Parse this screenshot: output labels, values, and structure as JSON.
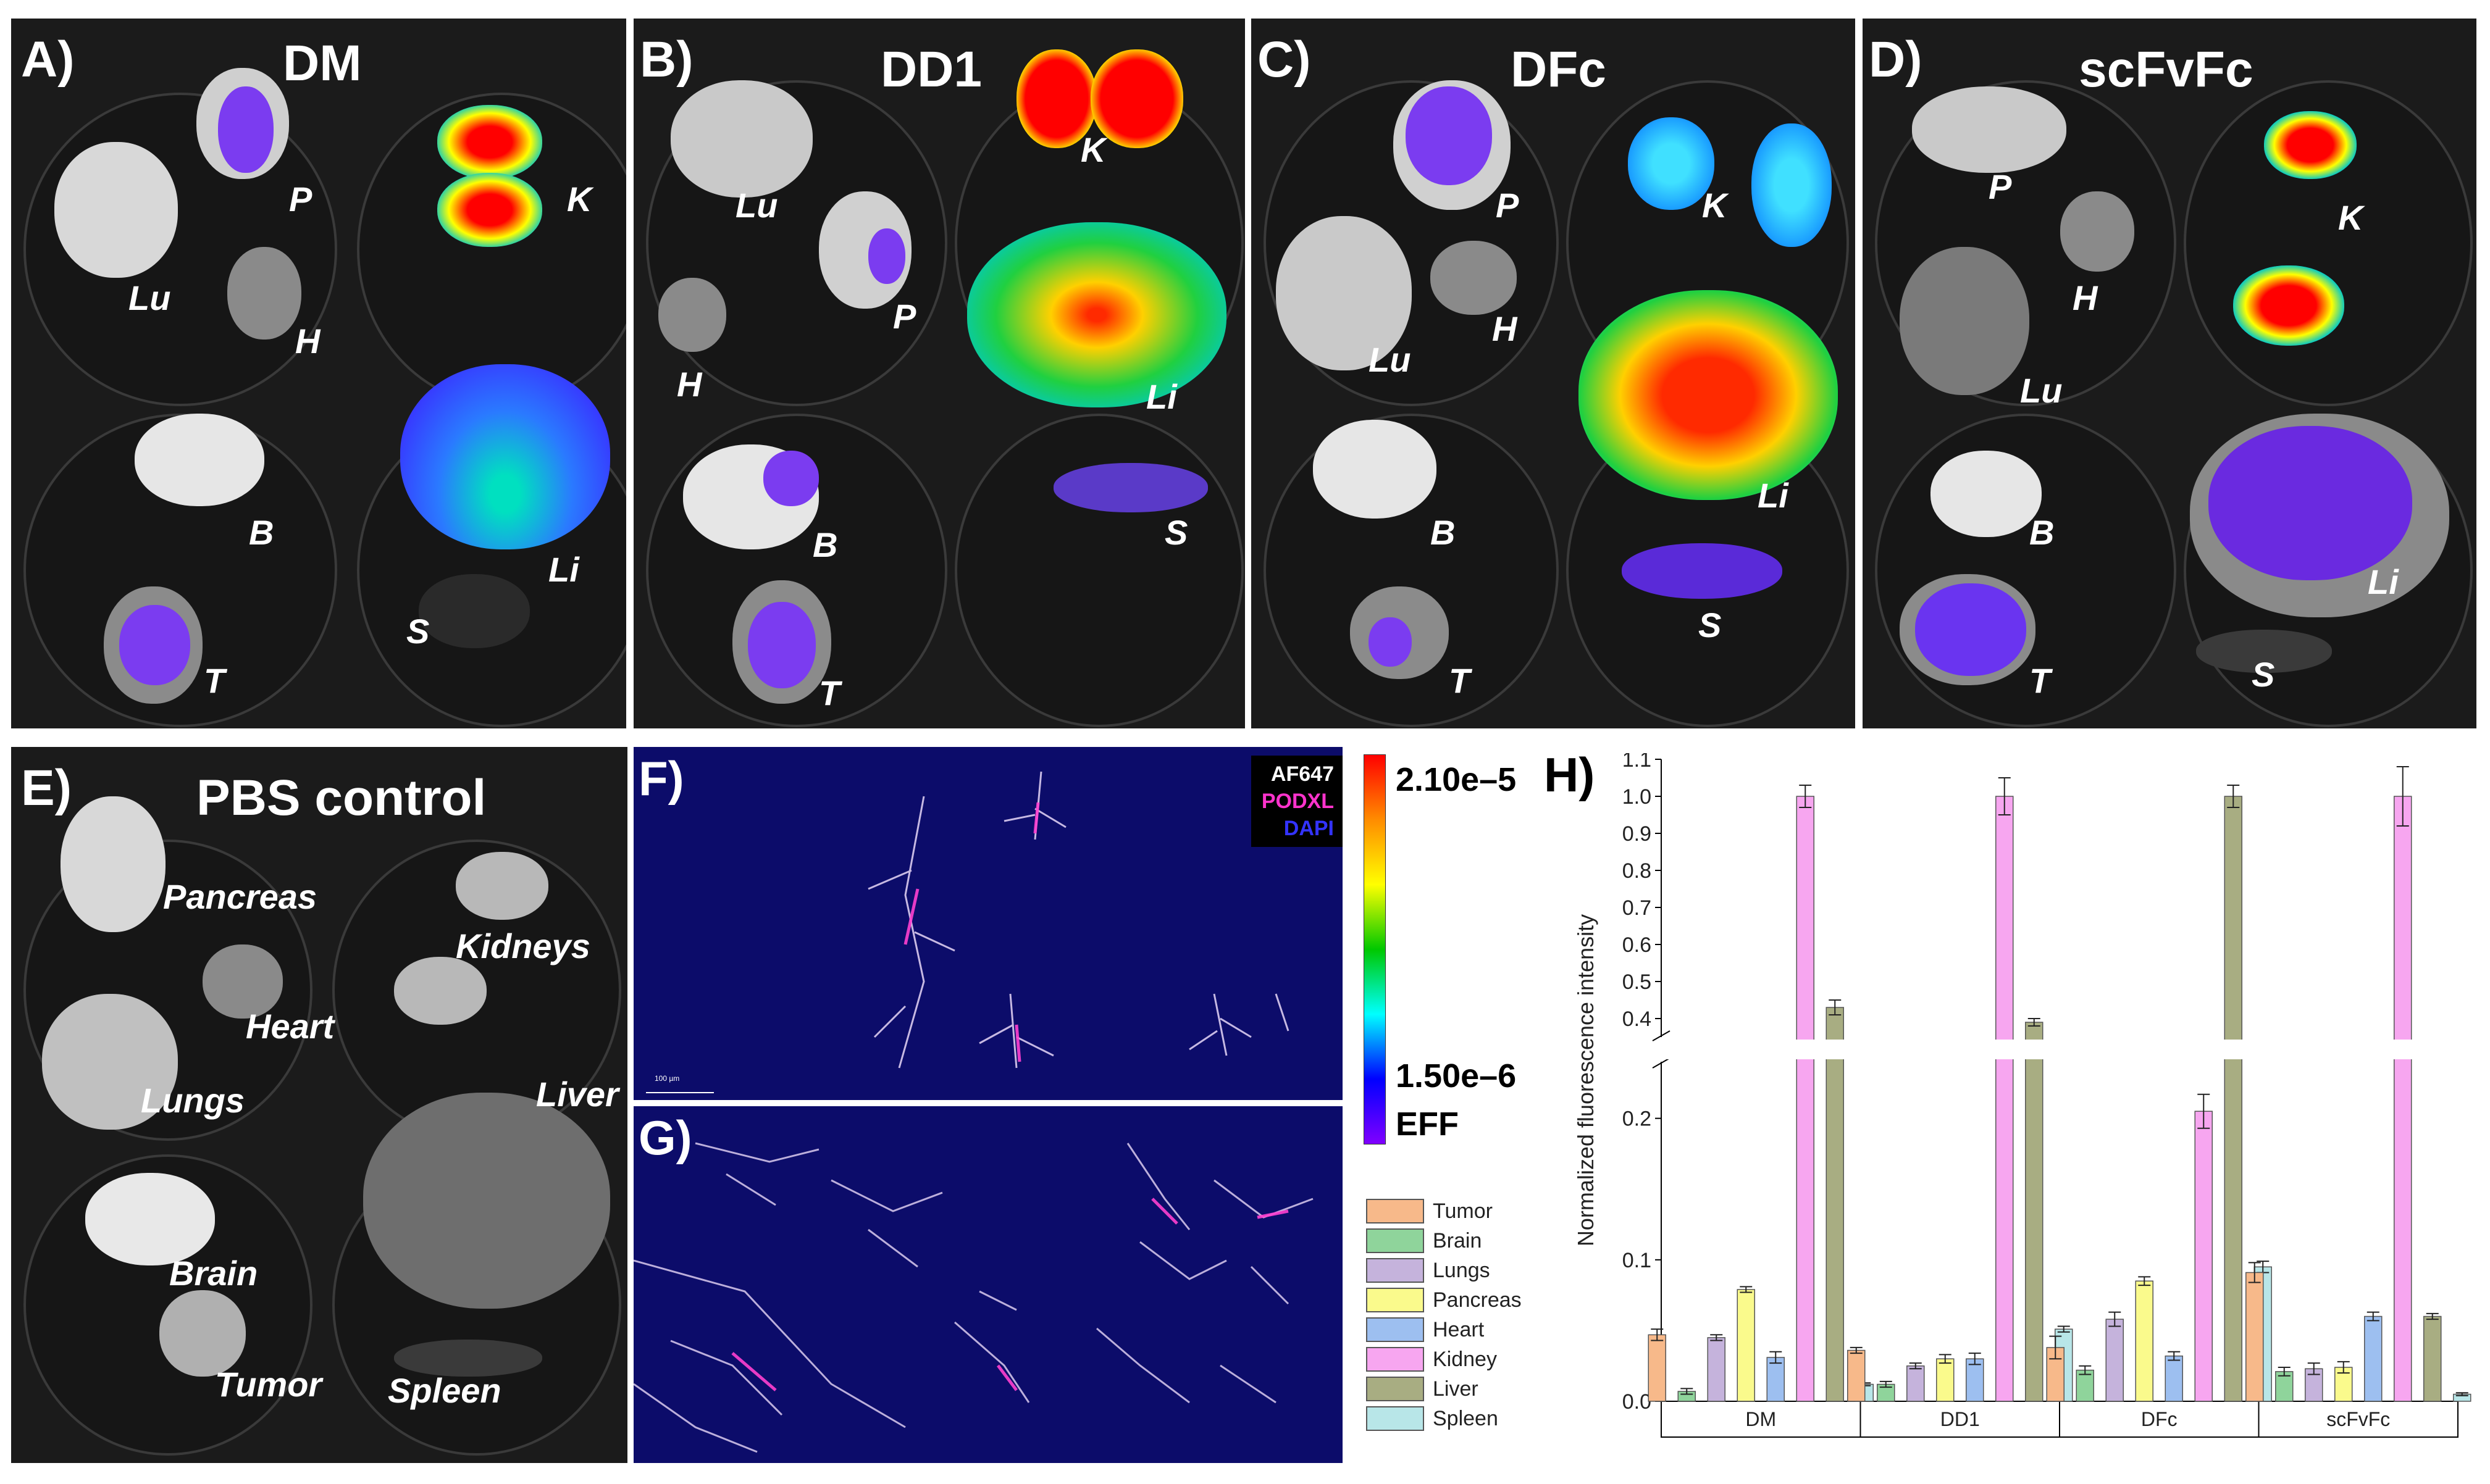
{
  "panels": {
    "A": {
      "label": "A)",
      "title": "DM",
      "organs": [
        "P",
        "K",
        "Lu",
        "H",
        "B",
        "Li",
        "T",
        "S"
      ]
    },
    "B": {
      "label": "B)",
      "title": "DD1",
      "organs": [
        "Lu",
        "K",
        "P",
        "H",
        "Li",
        "B",
        "S",
        "T"
      ]
    },
    "C": {
      "label": "C)",
      "title": "DFc",
      "organs": [
        "P",
        "K",
        "Lu",
        "H",
        "B",
        "Li",
        "S",
        "T"
      ]
    },
    "D": {
      "label": "D)",
      "title": "scFvFc",
      "organs": [
        "P",
        "K",
        "H",
        "Lu",
        "B",
        "Li",
        "T",
        "S"
      ]
    },
    "E": {
      "label": "E)",
      "title": "PBS control",
      "organs": [
        "Pancreas",
        "Kidneys",
        "Heart",
        "Lungs",
        "Liver",
        "Brain",
        "Tumor",
        "Spleen"
      ]
    },
    "F": {
      "label": "F)",
      "stain_legend": [
        "AF647",
        "PODXL",
        "DAPI"
      ],
      "stain_colors": [
        "#ffffff",
        "#ff33cc",
        "#3333ff"
      ],
      "scale_text": "100 µm"
    },
    "G": {
      "label": "G)"
    }
  },
  "colorbar": {
    "max": "2.10e–5",
    "min": "1.50e–6",
    "unit": "EFF",
    "colors": [
      "#ff0000",
      "#ffff00",
      "#00c800",
      "#00ffff",
      "#0000ff",
      "#8000ff"
    ]
  },
  "chart_data": {
    "type": "bar",
    "panel_label": "H)",
    "ylabel": "Normalized fluorescence intensity",
    "axis_break": {
      "lower_range": [
        0,
        0.24
      ],
      "upper_range": [
        0.35,
        1.1
      ]
    },
    "yticks_lower": [
      "0.0",
      "0.1",
      "0.2"
    ],
    "yticks_upper": [
      "0.4",
      "0.5",
      "0.6",
      "0.7",
      "0.8",
      "0.9",
      "1.0",
      "1.1"
    ],
    "categories": [
      "DM",
      "DD1",
      "DFc",
      "scFvFc"
    ],
    "series": [
      {
        "name": "Tumor",
        "color": "#f7b98a",
        "values": [
          0.047,
          0.036,
          0.038,
          0.091
        ],
        "errors": [
          0.004,
          0.002,
          0.008,
          0.007
        ]
      },
      {
        "name": "Brain",
        "color": "#8fd49b",
        "values": [
          0.007,
          0.012,
          0.022,
          0.021
        ],
        "errors": [
          0.002,
          0.002,
          0.003,
          0.003
        ]
      },
      {
        "name": "Lungs",
        "color": "#c5b3dc",
        "values": [
          0.045,
          0.025,
          0.058,
          0.023
        ],
        "errors": [
          0.002,
          0.002,
          0.005,
          0.004
        ]
      },
      {
        "name": "Pancreas",
        "color": "#fafa8c",
        "values": [
          0.079,
          0.03,
          0.085,
          0.024
        ],
        "errors": [
          0.002,
          0.003,
          0.003,
          0.004
        ]
      },
      {
        "name": "Heart",
        "color": "#9dbff0",
        "values": [
          0.031,
          0.03,
          0.032,
          0.06
        ],
        "errors": [
          0.004,
          0.004,
          0.003,
          0.003
        ]
      },
      {
        "name": "Kidney",
        "color": "#f7a6f0",
        "values": [
          1.0,
          1.0,
          0.205,
          1.0
        ],
        "errors": [
          0.03,
          0.05,
          0.012,
          0.08
        ]
      },
      {
        "name": "Liver",
        "color": "#a8ad82",
        "values": [
          0.43,
          0.39,
          1.0,
          0.06
        ],
        "errors": [
          0.02,
          0.01,
          0.03,
          0.002
        ]
      },
      {
        "name": "Spleen",
        "color": "#b8e6e8",
        "values": [
          0.012,
          0.051,
          0.095,
          0.005
        ],
        "errors": [
          0.001,
          0.002,
          0.004,
          0.001
        ]
      }
    ]
  }
}
